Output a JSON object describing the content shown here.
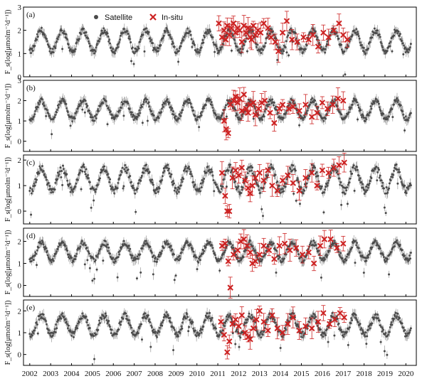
{
  "figure": {
    "legend": {
      "satellite_label": "Satellite",
      "insitu_label": "In-situ"
    },
    "colors": {
      "satellite": "#4a4a4a",
      "insitu": "#cc2222",
      "axis": "#000000"
    }
  },
  "chart_data": [
    {
      "type": "scatter",
      "panel_label": "(a)",
      "ylabel": "F_s(log[μmolm⁻²d⁻¹])",
      "ylim": [
        0,
        3
      ],
      "yticks": [
        0,
        1,
        2,
        3
      ],
      "xlim": [
        2001.7,
        2020.5
      ],
      "xtick_labels": [
        "2002",
        "2003",
        "2004",
        "2005",
        "2006",
        "2007",
        "2008",
        "2009",
        "2010",
        "2011",
        "2012",
        "2013",
        "2014",
        "2015",
        "2016",
        "2017",
        "2018",
        "2019",
        "2020"
      ],
      "series": [
        {
          "name": "Satellite",
          "seasonal": {
            "mean": 1.55,
            "amplitude": 0.45,
            "min_phase": 0.05,
            "noise": 0.12
          }
        },
        {
          "name": "In-situ",
          "x": [
            2011.05,
            2011.2,
            2011.3,
            2011.38,
            2011.45,
            2011.55,
            2011.65,
            2011.75,
            2011.85,
            2011.95,
            2012.05,
            2012.15,
            2012.25,
            2012.35,
            2012.45,
            2012.55,
            2012.62,
            2012.7,
            2012.8,
            2012.92,
            2013.05,
            2013.2,
            2013.4,
            2013.55,
            2013.75,
            2013.9,
            2014.1,
            2014.3,
            2014.55,
            2014.8,
            2015.1,
            2015.35,
            2015.55,
            2015.8,
            2016.05,
            2016.3,
            2016.55,
            2016.8,
            2017.0,
            2017.2
          ],
          "y": [
            2.3,
            1.7,
            2.0,
            1.6,
            2.2,
            1.8,
            2.1,
            2.3,
            1.9,
            2.1,
            2.0,
            1.5,
            2.2,
            1.9,
            2.1,
            1.7,
            1.6,
            2.2,
            1.8,
            2.0,
            1.9,
            2.3,
            2.1,
            1.7,
            1.5,
            1.1,
            1.9,
            2.4,
            1.6,
            1.5,
            1.7,
            1.6,
            1.8,
            1.3,
            1.9,
            1.7,
            2.0,
            2.3,
            1.8,
            1.6
          ]
        }
      ]
    },
    {
      "type": "scatter",
      "panel_label": "(b)",
      "ylabel": "F_s(log[μmolm⁻²d⁻¹])",
      "ylim": [
        -0.5,
        3
      ],
      "yticks": [
        0,
        1,
        2,
        3
      ],
      "xlim": [
        2001.7,
        2020.5
      ],
      "xtick_labels": [
        "2002",
        "2003",
        "2004",
        "2005",
        "2006",
        "2007",
        "2008",
        "2009",
        "2010",
        "2011",
        "2012",
        "2013",
        "2014",
        "2015",
        "2016",
        "2017",
        "2018",
        "2019",
        "2020"
      ],
      "series": [
        {
          "name": "Satellite",
          "seasonal": {
            "mean": 1.55,
            "amplitude": 0.45,
            "min_phase": 0.05,
            "noise": 0.12
          }
        },
        {
          "name": "In-situ",
          "x": [
            2011.3,
            2011.4,
            2011.5,
            2011.6,
            2011.75,
            2011.85,
            2011.95,
            2012.05,
            2012.15,
            2012.25,
            2012.35,
            2012.45,
            2012.55,
            2012.7,
            2012.8,
            2012.95,
            2013.1,
            2013.25,
            2013.5,
            2013.7,
            2013.95,
            2014.1,
            2014.4,
            2014.6,
            2014.9,
            2015.2,
            2015.5,
            2015.75,
            2016.0,
            2016.25,
            2016.5,
            2016.75,
            2017.0
          ],
          "y": [
            1.0,
            0.6,
            0.4,
            1.8,
            2.0,
            2.2,
            1.9,
            2.1,
            1.5,
            2.3,
            1.6,
            1.4,
            1.8,
            1.9,
            1.3,
            1.6,
            1.9,
            2.0,
            1.4,
            0.9,
            1.6,
            1.8,
            1.6,
            1.7,
            1.5,
            1.8,
            1.2,
            1.4,
            1.9,
            1.6,
            1.8,
            2.1,
            2.0
          ]
        }
      ]
    },
    {
      "type": "scatter",
      "panel_label": "(c)",
      "ylabel": "F_s(log[μmolm⁻²d⁻¹])",
      "ylim": [
        -0.5,
        2.2
      ],
      "yticks": [
        0,
        1,
        2
      ],
      "xlim": [
        2001.7,
        2020.5
      ],
      "xtick_labels": [
        "2002",
        "2003",
        "2004",
        "2005",
        "2006",
        "2007",
        "2008",
        "2009",
        "2010",
        "2011",
        "2012",
        "2013",
        "2014",
        "2015",
        "2016",
        "2017",
        "2018",
        "2019",
        "2020"
      ],
      "series": [
        {
          "name": "Satellite",
          "seasonal": {
            "mean": 1.25,
            "amplitude": 0.45,
            "min_phase": 0.05,
            "noise": 0.14
          }
        },
        {
          "name": "In-situ",
          "x": [
            2011.2,
            2011.35,
            2011.45,
            2011.55,
            2011.7,
            2011.85,
            2012.0,
            2012.15,
            2012.3,
            2012.45,
            2012.55,
            2012.65,
            2012.8,
            2013.0,
            2013.2,
            2013.4,
            2013.6,
            2013.85,
            2014.1,
            2014.35,
            2014.6,
            2014.9,
            2015.2,
            2015.5,
            2015.75,
            2016.0,
            2016.3,
            2016.55,
            2016.8,
            2017.05
          ],
          "y": [
            1.5,
            0.6,
            0.0,
            0.0,
            1.3,
            1.6,
            1.4,
            1.7,
            1.2,
            0.9,
            0.7,
            1.0,
            1.3,
            1.5,
            1.2,
            1.6,
            1.0,
            0.8,
            1.2,
            1.4,
            1.1,
            0.8,
            1.3,
            1.5,
            1.0,
            1.6,
            1.5,
            1.7,
            1.8,
            1.9
          ]
        }
      ]
    },
    {
      "type": "scatter",
      "panel_label": "(d)",
      "ylabel": "F_s(log[μmolm⁻²d⁻¹])",
      "ylim": [
        -0.5,
        2.6
      ],
      "yticks": [
        0,
        1,
        2
      ],
      "xlim": [
        2001.7,
        2020.5
      ],
      "xtick_labels": [
        "2002",
        "2003",
        "2004",
        "2005",
        "2006",
        "2007",
        "2008",
        "2009",
        "2010",
        "2011",
        "2012",
        "2013",
        "2014",
        "2015",
        "2016",
        "2017",
        "2018",
        "2019",
        "2020"
      ],
      "series": [
        {
          "name": "Satellite",
          "seasonal": {
            "mean": 1.55,
            "amplitude": 0.4,
            "min_phase": 0.05,
            "noise": 0.12
          }
        },
        {
          "name": "In-situ",
          "x": [
            2011.2,
            2011.35,
            2011.5,
            2011.6,
            2011.75,
            2011.95,
            2012.1,
            2012.25,
            2012.4,
            2012.55,
            2012.65,
            2012.8,
            2013.0,
            2013.2,
            2013.45,
            2013.7,
            2013.95,
            2014.2,
            2014.45,
            2014.75,
            2015.05,
            2015.35,
            2015.6,
            2015.9,
            2016.1,
            2016.4,
            2016.7,
            2017.0
          ],
          "y": [
            1.8,
            1.9,
            1.1,
            -0.1,
            1.4,
            1.6,
            2.0,
            2.1,
            1.8,
            1.5,
            1.0,
            1.1,
            1.4,
            1.8,
            1.6,
            1.2,
            1.8,
            1.9,
            1.6,
            1.7,
            1.4,
            1.5,
            1.0,
            1.8,
            2.1,
            2.1,
            1.7,
            1.9
          ]
        }
      ]
    },
    {
      "type": "scatter",
      "panel_label": "(e)",
      "ylabel": "F_s(log[μmolm⁻²d⁻¹])",
      "ylim": [
        -0.5,
        2.5
      ],
      "yticks": [
        0,
        1,
        2
      ],
      "xlim": [
        2001.7,
        2020.5
      ],
      "xtick_labels": [
        "2002",
        "2003",
        "2004",
        "2005",
        "2006",
        "2007",
        "2008",
        "2009",
        "2010",
        "2011",
        "2012",
        "2013",
        "2014",
        "2015",
        "2016",
        "2017",
        "2018",
        "2019",
        "2020"
      ],
      "series": [
        {
          "name": "Satellite",
          "seasonal": {
            "mean": 1.35,
            "amplitude": 0.45,
            "min_phase": 0.05,
            "noise": 0.14
          }
        },
        {
          "name": "In-situ",
          "x": [
            2011.15,
            2011.3,
            2011.45,
            2011.55,
            2011.7,
            2011.85,
            2012.0,
            2012.15,
            2012.3,
            2012.45,
            2012.55,
            2012.7,
            2012.85,
            2013.0,
            2013.2,
            2013.4,
            2013.6,
            2013.85,
            2014.1,
            2014.35,
            2014.6,
            2014.9,
            2015.2,
            2015.5,
            2015.8,
            2016.05,
            2016.35,
            2016.6,
            2016.85,
            2017.05
          ],
          "y": [
            1.5,
            0.9,
            0.1,
            0.6,
            1.4,
            1.6,
            1.3,
            1.8,
            1.0,
            0.8,
            0.7,
            1.2,
            1.6,
            2.0,
            1.5,
            1.1,
            1.8,
            1.2,
            1.0,
            1.4,
            1.7,
            1.1,
            1.3,
            1.2,
            1.5,
            1.9,
            1.4,
            1.6,
            1.9,
            1.7
          ]
        }
      ]
    }
  ]
}
